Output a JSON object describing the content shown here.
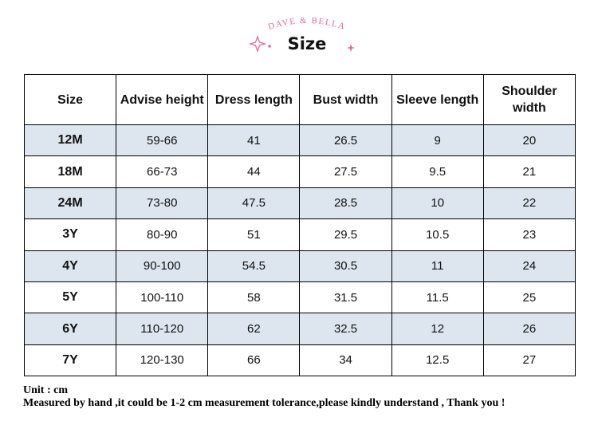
{
  "header": {
    "brand": "DAVE & BELLA",
    "title": "Size"
  },
  "table": {
    "columns": [
      "Size",
      "Advise height",
      "Dress length",
      "Bust width",
      "Sleeve length",
      "Shoulder width"
    ],
    "rows": [
      [
        "12M",
        "59-66",
        "41",
        "26.5",
        "9",
        "20"
      ],
      [
        "18M",
        "66-73",
        "44",
        "27.5",
        "9.5",
        "21"
      ],
      [
        "24M",
        "73-80",
        "47.5",
        "28.5",
        "10",
        "22"
      ],
      [
        "3Y",
        "80-90",
        "51",
        "29.5",
        "10.5",
        "23"
      ],
      [
        "4Y",
        "90-100",
        "54.5",
        "30.5",
        "11",
        "24"
      ],
      [
        "5Y",
        "100-110",
        "58",
        "31.5",
        "11.5",
        "25"
      ],
      [
        "6Y",
        "110-120",
        "62",
        "32.5",
        "12",
        "26"
      ],
      [
        "7Y",
        "120-130",
        "66",
        "34",
        "12.5",
        "27"
      ]
    ]
  },
  "notes": [
    "Unit : cm",
    "Measured by hand ,it could be 1-2 cm measurement tolerance,please kindly understand , Thank you !"
  ]
}
